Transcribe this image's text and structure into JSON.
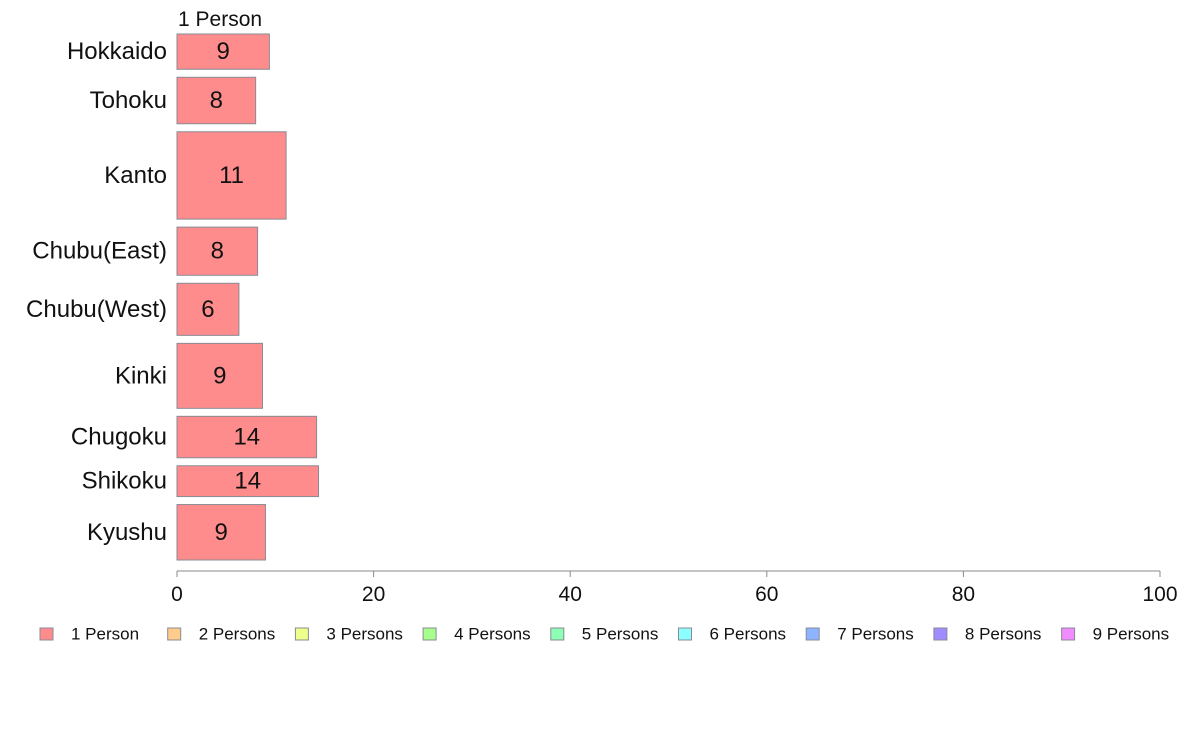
{
  "chart_data": {
    "type": "bar",
    "orientation": "horizontal",
    "stacked": true,
    "variable_width": true,
    "column_header": "1 Person",
    "categories": [
      "Hokkaido",
      "Tohoku",
      "Kanto",
      "Chubu(East)",
      "Chubu(West)",
      "Kinki",
      "Chugoku",
      "Shikoku",
      "Kyushu"
    ],
    "series": [
      {
        "name": "1 Person",
        "color": "#ff8c8c",
        "values": [
          9.4,
          8.0,
          11.1,
          8.2,
          6.3,
          8.7,
          14.2,
          14.4,
          9.0
        ],
        "labels": [
          "9",
          "8",
          "11",
          "8",
          "6",
          "9",
          "14",
          "14",
          "9"
        ]
      },
      {
        "name": "2 Persons",
        "color": "#ffcc8c",
        "values": [
          0,
          0,
          0,
          0,
          0,
          0,
          0,
          0,
          0
        ]
      },
      {
        "name": "3 Persons",
        "color": "#eeff8c",
        "values": [
          0,
          0,
          0,
          0,
          0,
          0,
          0,
          0,
          0
        ]
      },
      {
        "name": "4 Persons",
        "color": "#a6ff8c",
        "values": [
          0,
          0,
          0,
          0,
          0,
          0,
          0,
          0,
          0
        ]
      },
      {
        "name": "5 Persons",
        "color": "#8cffb4",
        "values": [
          0,
          0,
          0,
          0,
          0,
          0,
          0,
          0,
          0
        ]
      },
      {
        "name": "6 Persons",
        "color": "#8cffff",
        "values": [
          0,
          0,
          0,
          0,
          0,
          0,
          0,
          0,
          0
        ]
      },
      {
        "name": "7 Persons",
        "color": "#8cb4ff",
        "values": [
          0,
          0,
          0,
          0,
          0,
          0,
          0,
          0,
          0
        ]
      },
      {
        "name": "8 Persons",
        "color": "#a08cff",
        "values": [
          0,
          0,
          0,
          0,
          0,
          0,
          0,
          0,
          0
        ]
      },
      {
        "name": "9 Persons",
        "color": "#f08cff",
        "values": [
          0,
          0,
          0,
          0,
          0,
          0,
          0,
          0,
          0
        ]
      }
    ],
    "category_weights": [
      6.3,
      8.3,
      15.6,
      8.6,
      9.3,
      11.6,
      7.4,
      5.5,
      9.9
    ],
    "xlim": [
      0,
      100
    ],
    "xticks": [
      "0",
      "20",
      "40",
      "60",
      "80",
      "100"
    ],
    "legend_position": "bottom",
    "grid": false
  }
}
